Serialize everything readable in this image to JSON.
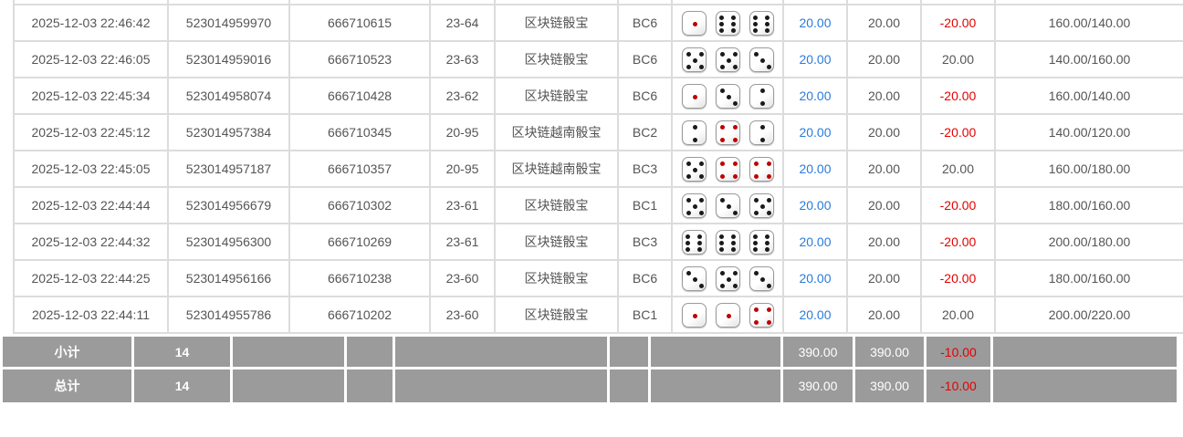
{
  "colors": {
    "link_blue": "#2b7bd9",
    "loss_red": "#e60000",
    "footer_bg": "#9b9b9b",
    "grid_border": "#dcdcdc",
    "body_text": "#555555",
    "die_pip_black": "#1a1a1a",
    "die_pip_red": "#c00000"
  },
  "rows": [
    {
      "time": "2025-12-03 22:46:42",
      "bet_id": "523014959970",
      "round_id": "666710615",
      "period": "23-64",
      "game": "区块链骰宝",
      "bet_option": "BC6",
      "dice": [
        1,
        6,
        6
      ],
      "bet_amount": "20.00",
      "valid_amount": "20.00",
      "profit": "-20.00",
      "balance": "160.00/140.00"
    },
    {
      "time": "2025-12-03 22:46:05",
      "bet_id": "523014959016",
      "round_id": "666710523",
      "period": "23-63",
      "game": "区块链骰宝",
      "bet_option": "BC6",
      "dice": [
        5,
        5,
        3
      ],
      "bet_amount": "20.00",
      "valid_amount": "20.00",
      "profit": "20.00",
      "balance": "140.00/160.00"
    },
    {
      "time": "2025-12-03 22:45:34",
      "bet_id": "523014958074",
      "round_id": "666710428",
      "period": "23-62",
      "game": "区块链骰宝",
      "bet_option": "BC6",
      "dice": [
        1,
        3,
        2
      ],
      "bet_amount": "20.00",
      "valid_amount": "20.00",
      "profit": "-20.00",
      "balance": "160.00/140.00"
    },
    {
      "time": "2025-12-03 22:45:12",
      "bet_id": "523014957384",
      "round_id": "666710345",
      "period": "20-95",
      "game": "区块链越南骰宝",
      "bet_option": "BC2",
      "dice": [
        2,
        4,
        2
      ],
      "bet_amount": "20.00",
      "valid_amount": "20.00",
      "profit": "-20.00",
      "balance": "140.00/120.00"
    },
    {
      "time": "2025-12-03 22:45:05",
      "bet_id": "523014957187",
      "round_id": "666710357",
      "period": "20-95",
      "game": "区块链越南骰宝",
      "bet_option": "BC3",
      "dice": [
        5,
        4,
        4
      ],
      "bet_amount": "20.00",
      "valid_amount": "20.00",
      "profit": "20.00",
      "balance": "160.00/180.00"
    },
    {
      "time": "2025-12-03 22:44:44",
      "bet_id": "523014956679",
      "round_id": "666710302",
      "period": "23-61",
      "game": "区块链骰宝",
      "bet_option": "BC1",
      "dice": [
        5,
        3,
        5
      ],
      "bet_amount": "20.00",
      "valid_amount": "20.00",
      "profit": "-20.00",
      "balance": "180.00/160.00"
    },
    {
      "time": "2025-12-03 22:44:32",
      "bet_id": "523014956300",
      "round_id": "666710269",
      "period": "23-61",
      "game": "区块链骰宝",
      "bet_option": "BC3",
      "dice": [
        6,
        6,
        6
      ],
      "bet_amount": "20.00",
      "valid_amount": "20.00",
      "profit": "-20.00",
      "balance": "200.00/180.00"
    },
    {
      "time": "2025-12-03 22:44:25",
      "bet_id": "523014956166",
      "round_id": "666710238",
      "period": "23-60",
      "game": "区块链骰宝",
      "bet_option": "BC6",
      "dice": [
        3,
        5,
        3
      ],
      "bet_amount": "20.00",
      "valid_amount": "20.00",
      "profit": "-20.00",
      "balance": "180.00/160.00"
    },
    {
      "time": "2025-12-03 22:44:11",
      "bet_id": "523014955786",
      "round_id": "666710202",
      "period": "23-60",
      "game": "区块链骰宝",
      "bet_option": "BC1",
      "dice": [
        1,
        1,
        4
      ],
      "bet_amount": "20.00",
      "valid_amount": "20.00",
      "profit": "20.00",
      "balance": "200.00/220.00"
    }
  ],
  "footer": {
    "subtotal": {
      "label": "小计",
      "count": "14",
      "amount": "390.00",
      "valid": "390.00",
      "profit": "-10.00"
    },
    "total": {
      "label": "总计",
      "count": "14",
      "amount": "390.00",
      "valid": "390.00",
      "profit": "-10.00"
    }
  }
}
